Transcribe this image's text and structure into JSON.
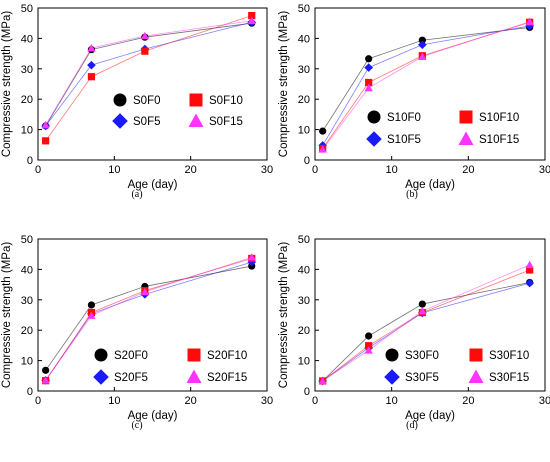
{
  "figure": {
    "panels": [
      {
        "caption": "(a)"
      },
      {
        "caption": "(b)"
      },
      {
        "caption": "(c)"
      },
      {
        "caption": "(d)"
      }
    ]
  },
  "colors": {
    "F0": "#000000",
    "F5": "#1a1aff",
    "F10": "#ff0a0a",
    "F15": "#ff33ff"
  },
  "chart_data": [
    {
      "type": "line",
      "caption": "(a)",
      "xlabel": "Age (day)",
      "ylabel": "Compressive strength (MPa)",
      "xlim": [
        0,
        30
      ],
      "ylim": [
        0,
        50
      ],
      "xticks": [
        0,
        10,
        20,
        30
      ],
      "yticks": [
        0,
        10,
        20,
        30,
        40,
        50
      ],
      "x": [
        1,
        7,
        14,
        28
      ],
      "series": [
        {
          "name": "S0F0",
          "marker": "circle",
          "values": [
            11.2,
            36.3,
            40.4,
            45.0
          ]
        },
        {
          "name": "S0F5",
          "marker": "diamond",
          "values": [
            11.2,
            31.2,
            36.5,
            45.3
          ]
        },
        {
          "name": "S0F10",
          "marker": "square",
          "values": [
            6.3,
            27.4,
            35.8,
            47.5
          ]
        },
        {
          "name": "S0F15",
          "marker": "triangle",
          "values": [
            11.5,
            36.8,
            40.8,
            45.8
          ]
        }
      ]
    },
    {
      "type": "line",
      "caption": "(b)",
      "xlabel": "Age (day)",
      "ylabel": "Compressive strength (MPa)",
      "xlim": [
        0,
        30
      ],
      "ylim": [
        0,
        50
      ],
      "xticks": [
        0,
        10,
        20,
        30
      ],
      "yticks": [
        0,
        10,
        20,
        30,
        40,
        50
      ],
      "x": [
        1,
        7,
        14,
        28
      ],
      "series": [
        {
          "name": "S10F0",
          "marker": "circle",
          "values": [
            9.5,
            33.3,
            39.4,
            43.6
          ]
        },
        {
          "name": "S10F5",
          "marker": "diamond",
          "values": [
            4.8,
            30.4,
            37.9,
            44.1
          ]
        },
        {
          "name": "S10F10",
          "marker": "square",
          "values": [
            3.8,
            25.5,
            34.3,
            45.3
          ]
        },
        {
          "name": "S10F15",
          "marker": "triangle",
          "values": [
            3.5,
            23.7,
            34.0,
            45.5
          ]
        }
      ]
    },
    {
      "type": "line",
      "caption": "(c)",
      "xlabel": "Age (day)",
      "ylabel": "Compressive strength (MPa)",
      "xlim": [
        0,
        30
      ],
      "ylim": [
        0,
        50
      ],
      "xticks": [
        0,
        10,
        20,
        30
      ],
      "yticks": [
        0,
        10,
        20,
        30,
        40,
        50
      ],
      "x": [
        1,
        7,
        14,
        28
      ],
      "series": [
        {
          "name": "S20F0",
          "marker": "circle",
          "values": [
            6.8,
            28.3,
            34.4,
            41.1
          ]
        },
        {
          "name": "S20F5",
          "marker": "diamond",
          "values": [
            3.5,
            25.4,
            31.8,
            42.4
          ]
        },
        {
          "name": "S20F10",
          "marker": "square",
          "values": [
            3.4,
            25.8,
            33.0,
            43.6
          ]
        },
        {
          "name": "S20F15",
          "marker": "triangle",
          "values": [
            3.5,
            24.8,
            32.6,
            44.0
          ]
        }
      ]
    },
    {
      "type": "line",
      "caption": "(d)",
      "xlabel": "Age (day)",
      "ylabel": "Compressive strength (MPa)",
      "xlim": [
        0,
        30
      ],
      "ylim": [
        0,
        50
      ],
      "xticks": [
        0,
        10,
        20,
        30
      ],
      "yticks": [
        0,
        10,
        20,
        30,
        40,
        50
      ],
      "x": [
        1,
        7,
        14,
        28
      ],
      "series": [
        {
          "name": "S30F0",
          "marker": "circle",
          "values": [
            3.3,
            18.1,
            28.6,
            35.7
          ]
        },
        {
          "name": "S30F5",
          "marker": "diamond",
          "values": [
            3.3,
            14.2,
            25.7,
            35.5
          ]
        },
        {
          "name": "S30F10",
          "marker": "square",
          "values": [
            3.3,
            14.9,
            25.8,
            39.8
          ]
        },
        {
          "name": "S30F15",
          "marker": "triangle",
          "values": [
            3.3,
            13.4,
            26.3,
            41.5
          ]
        }
      ]
    }
  ]
}
